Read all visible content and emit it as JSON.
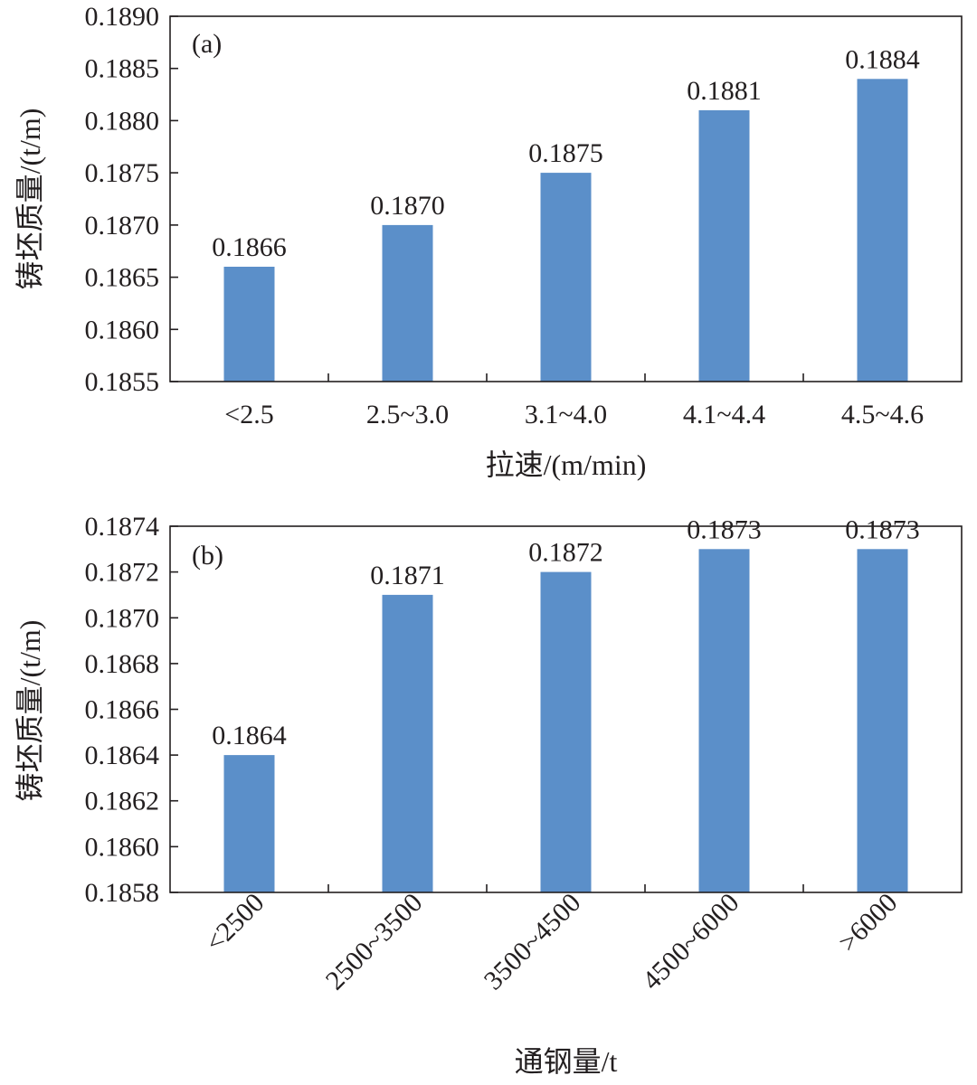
{
  "chart_data": [
    {
      "type": "bar",
      "panel_label": "(a)",
      "categories": [
        "<2.5",
        "2.5~3.0",
        "3.1~4.0",
        "4.1~4.4",
        "4.5~4.6"
      ],
      "values": [
        0.1866,
        0.187,
        0.1875,
        0.1881,
        0.1884
      ],
      "value_labels": [
        "0.1866",
        "0.1870",
        "0.1875",
        "0.1881",
        "0.1884"
      ],
      "xlabel": "拉速/(m/min)",
      "ylabel": "铸坯质量/(t/m)",
      "ylim": [
        0.1855,
        0.189
      ],
      "yticks": [
        "0.1855",
        "0.1860",
        "0.1865",
        "0.1870",
        "0.1875",
        "0.1880",
        "0.1885",
        "0.1890"
      ],
      "grid": false,
      "bar_color": "#5b8fc9",
      "xtick_rotation": 0
    },
    {
      "type": "bar",
      "panel_label": "(b)",
      "categories": [
        "<2500",
        "2500~3500",
        "3500~4500",
        "4500~6000",
        ">6000"
      ],
      "values": [
        0.1864,
        0.1871,
        0.1872,
        0.1873,
        0.1873
      ],
      "value_labels": [
        "0.1864",
        "0.1871",
        "0.1872",
        "0.1873",
        "0.1873"
      ],
      "xlabel": "通钢量/t",
      "ylabel": "铸坯质量/(t/m)",
      "ylim": [
        0.1858,
        0.1874
      ],
      "yticks": [
        "0.1858",
        "0.1860",
        "0.1862",
        "0.1864",
        "0.1866",
        "0.1868",
        "0.1870",
        "0.1872",
        "0.1874"
      ],
      "grid": false,
      "bar_color": "#5b8fc9",
      "xtick_rotation": -45
    }
  ]
}
